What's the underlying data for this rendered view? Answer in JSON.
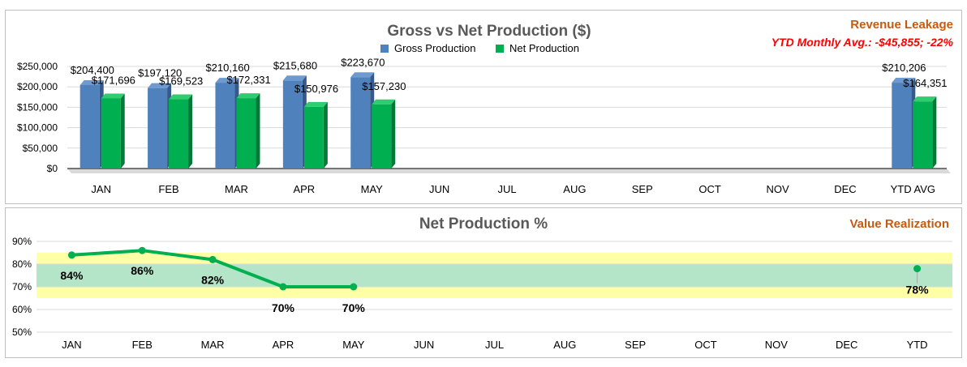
{
  "colors": {
    "gross": "#4f81bd",
    "gross_dark": "#34598a",
    "gross_top": "#6e9ad0",
    "net": "#00b050",
    "net_dark": "#007a37",
    "net_top": "#2fcc70",
    "line": "#00b050",
    "band_outer": "#ffffa6",
    "band_inner": "#b4e5c8",
    "title": "#595959",
    "accent_orange": "#c55a11",
    "accent_red": "#ff0000"
  },
  "top": {
    "corner_title": "Revenue Leakage",
    "corner_subtitle": "YTD Monthly Avg.: -$45,855; -22%"
  },
  "bottom": {
    "corner_title": "Value Realization"
  },
  "chart_data": [
    {
      "type": "bar",
      "title": "Gross vs Net Production ($)",
      "categories": [
        "JAN",
        "FEB",
        "MAR",
        "APR",
        "MAY",
        "JUN",
        "JUL",
        "AUG",
        "SEP",
        "OCT",
        "NOV",
        "DEC",
        "YTD AVG"
      ],
      "series": [
        {
          "name": "Gross Production",
          "values": [
            204400,
            197120,
            210160,
            215680,
            223670,
            null,
            null,
            null,
            null,
            null,
            null,
            null,
            210206
          ],
          "labels": [
            "$204,400",
            "$197,120",
            "$210,160",
            "$215,680",
            "$223,670",
            "",
            "",
            "",
            "",
            "",
            "",
            "",
            "$210,206"
          ]
        },
        {
          "name": "Net Production",
          "values": [
            171696,
            169523,
            172331,
            150976,
            157230,
            null,
            null,
            null,
            null,
            null,
            null,
            null,
            164351
          ],
          "labels": [
            "$171,696",
            "$169,523",
            "$172,331",
            "$150,976",
            "$157,230",
            "",
            "",
            "",
            "",
            "",
            "",
            "",
            "$164,351"
          ]
        }
      ],
      "ylim": [
        0,
        250000
      ],
      "yticks": [
        "$0",
        "$50,000",
        "$100,000",
        "$150,000",
        "$200,000",
        "$250,000"
      ],
      "grid": true,
      "legend": "top-center"
    },
    {
      "type": "line",
      "title": "Net Production %",
      "categories": [
        "JAN",
        "FEB",
        "MAR",
        "APR",
        "MAY",
        "JUN",
        "JUL",
        "AUG",
        "SEP",
        "OCT",
        "NOV",
        "DEC",
        "YTD"
      ],
      "series": [
        {
          "values": [
            84,
            86,
            82,
            70,
            70,
            null,
            null,
            null,
            null,
            null,
            null,
            null,
            null
          ],
          "labels": [
            "84%",
            "86%",
            "82%",
            "70%",
            "70%",
            "",
            "",
            "",
            "",
            "",
            "",
            "",
            ""
          ]
        },
        {
          "values": [
            null,
            null,
            null,
            null,
            null,
            null,
            null,
            null,
            null,
            null,
            null,
            null,
            78
          ],
          "labels": [
            "",
            "",
            "",
            "",
            "",
            "",
            "",
            "",
            "",
            "",
            "",
            "",
            "78%"
          ]
        }
      ],
      "bands": [
        {
          "from": 65,
          "to": 85,
          "color": "band_outer"
        },
        {
          "from": 70,
          "to": 80,
          "color": "band_inner"
        }
      ],
      "ylim": [
        50,
        90
      ],
      "yticks": [
        "50%",
        "60%",
        "70%",
        "80%",
        "90%"
      ],
      "grid": true
    }
  ]
}
